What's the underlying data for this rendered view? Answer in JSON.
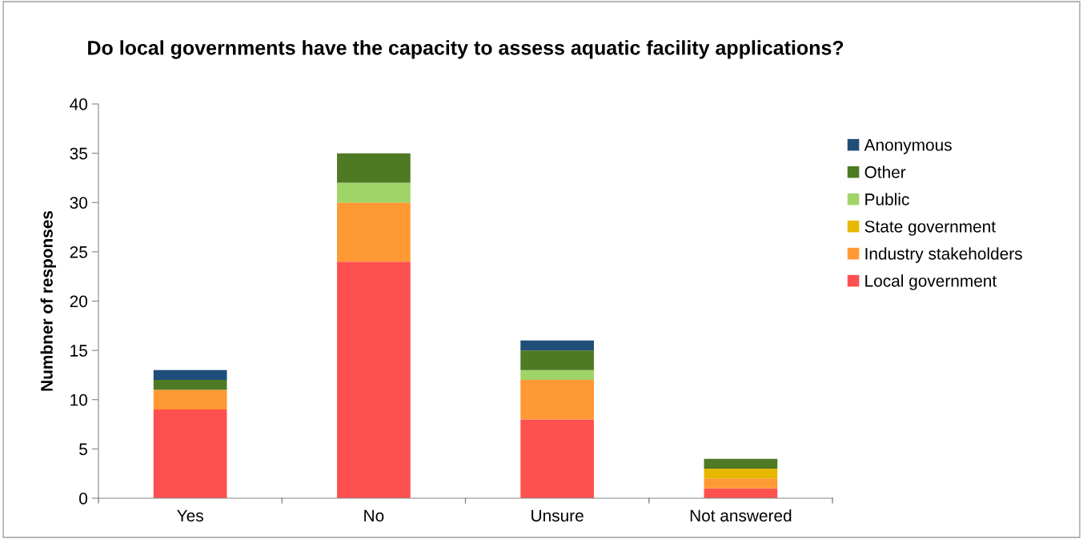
{
  "chart_data": {
    "type": "bar",
    "title": "Do local governments have the capacity to assess aquatic facility applications?",
    "ylabel": "Numbner of responses",
    "categories": [
      "Yes",
      "No",
      "Unsure",
      "Not answered"
    ],
    "stacked": true,
    "ylim": [
      0,
      40
    ],
    "yticks": [
      0,
      5,
      10,
      15,
      20,
      25,
      30,
      35,
      40
    ],
    "grid": false,
    "legend": "right",
    "series": [
      {
        "name": "Local government",
        "color": "#ff5050",
        "values": [
          9,
          24,
          8,
          1
        ]
      },
      {
        "name": "Industry stakeholders",
        "color": "#ff9933",
        "values": [
          2,
          6,
          4,
          1
        ]
      },
      {
        "name": "State government",
        "color": "#e6b800",
        "values": [
          0,
          0,
          0,
          1
        ]
      },
      {
        "name": "Public",
        "color": "#a0d468",
        "values": [
          0,
          2,
          1,
          0
        ]
      },
      {
        "name": "Other",
        "color": "#4e7a24",
        "values": [
          1,
          3,
          2,
          1
        ]
      },
      {
        "name": "Anonymous",
        "color": "#1f4e79",
        "values": [
          1,
          0,
          1,
          0
        ]
      }
    ]
  }
}
